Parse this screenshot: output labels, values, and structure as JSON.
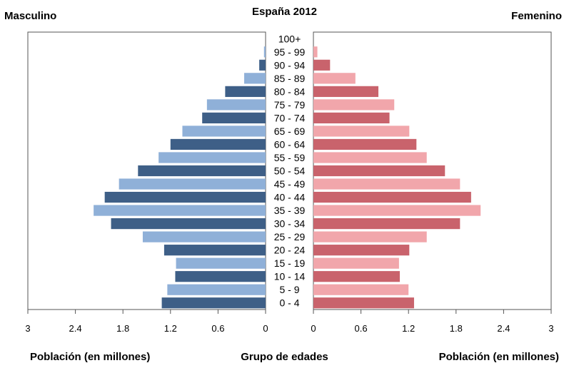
{
  "header": {
    "title": "España 2012",
    "left_label": "Masculino",
    "right_label": "Femenino"
  },
  "footer": {
    "left_axis_label": "Población (en millones)",
    "center_label": "Grupo de edades",
    "right_axis_label": "Población (en millones)"
  },
  "colors": {
    "male_dark": "#3e5f87",
    "male_light": "#8fb0d8",
    "female_dark": "#c9636c",
    "female_light": "#f1a6ab",
    "axis": "#555555"
  },
  "chart_data": {
    "type": "bar",
    "orientation": "horizontal-pyramid",
    "title": "España 2012",
    "xlabel": "Población (en millones)",
    "ylabel": "Grupo de edades",
    "xlim": [
      0,
      3
    ],
    "x_ticks": [
      "3",
      "2.4",
      "1.8",
      "1.2",
      "0.6",
      "0",
      "0",
      "0.6",
      "1.2",
      "1.8",
      "2.4",
      "3"
    ],
    "grid": false,
    "categories": [
      "100+",
      "95 - 99",
      "90 - 94",
      "85 - 89",
      "80 - 84",
      "75 - 79",
      "70 - 74",
      "65 - 69",
      "60 - 64",
      "55 - 59",
      "50 - 54",
      "45 - 49",
      "40 - 44",
      "35 - 39",
      "30 - 34",
      "25 - 29",
      "20 - 24",
      "15 - 19",
      "10 - 14",
      "5 - 9",
      "0 - 4"
    ],
    "series": [
      {
        "name": "Masculino",
        "values": [
          0.0,
          0.02,
          0.08,
          0.27,
          0.51,
          0.74,
          0.8,
          1.05,
          1.2,
          1.35,
          1.61,
          1.85,
          2.03,
          2.17,
          1.95,
          1.55,
          1.28,
          1.13,
          1.14,
          1.24,
          1.31
        ]
      },
      {
        "name": "Femenino",
        "values": [
          0.0,
          0.05,
          0.21,
          0.53,
          0.82,
          1.02,
          0.96,
          1.21,
          1.3,
          1.43,
          1.66,
          1.85,
          1.99,
          2.11,
          1.85,
          1.43,
          1.21,
          1.08,
          1.09,
          1.2,
          1.27
        ]
      }
    ]
  }
}
